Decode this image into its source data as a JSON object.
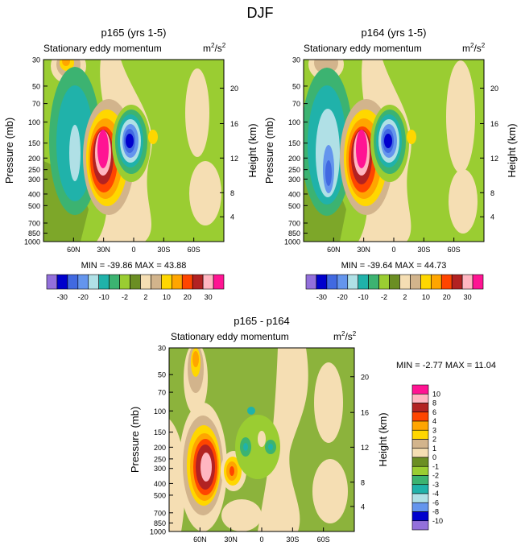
{
  "figure_title": "DJF",
  "chart_data": [
    {
      "type": "contour",
      "title": "p165 (yrs 1-5)",
      "subtitle": "Stationary eddy momentum",
      "units": "m2/s2",
      "units_base": "m",
      "units_sup": "2",
      "units_sep": "/s",
      "units_sup2": "2",
      "ylabel": "Pressure (mb)",
      "y2label": "Height (km)",
      "x_ticks": [
        "60N",
        "30N",
        "0",
        "30S",
        "60S"
      ],
      "x_values": [
        60,
        30,
        0,
        -30,
        -60
      ],
      "xlim": [
        90,
        -90
      ],
      "y_ticks": [
        "30",
        "50",
        "70",
        "100",
        "150",
        "200",
        "250",
        "300",
        "400",
        "500",
        "700",
        "850",
        "1000"
      ],
      "y_values": [
        30,
        50,
        70,
        100,
        150,
        200,
        250,
        300,
        400,
        500,
        700,
        850,
        1000
      ],
      "ylim": [
        30,
        1000
      ],
      "y2_ticks": [
        "20",
        "16",
        "12",
        "8",
        "4"
      ],
      "stats": "MIN = -39.86   MAX =  43.88",
      "min": -39.86,
      "max": 43.88
    },
    {
      "type": "contour",
      "title": "p164 (yrs 1-5)",
      "subtitle": "Stationary eddy momentum",
      "units": "m2/s2",
      "units_base": "m",
      "units_sup": "2",
      "units_sep": "/s",
      "units_sup2": "2",
      "ylabel": "Pressure (mb)",
      "y2label": "Height (km)",
      "x_ticks": [
        "60N",
        "30N",
        "0",
        "30S",
        "60S"
      ],
      "x_values": [
        60,
        30,
        0,
        -30,
        -60
      ],
      "xlim": [
        90,
        -90
      ],
      "y_ticks": [
        "30",
        "50",
        "70",
        "100",
        "150",
        "200",
        "250",
        "300",
        "400",
        "500",
        "700",
        "850",
        "1000"
      ],
      "y_values": [
        30,
        50,
        70,
        100,
        150,
        200,
        250,
        300,
        400,
        500,
        700,
        850,
        1000
      ],
      "ylim": [
        30,
        1000
      ],
      "y2_ticks": [
        "20",
        "16",
        "12",
        "8",
        "4"
      ],
      "stats": "MIN = -39.64   MAX =  44.73",
      "min": -39.64,
      "max": 44.73
    },
    {
      "type": "contour",
      "title": "p165 - p164",
      "subtitle": "Stationary eddy momentum",
      "units": "m2/s2",
      "units_base": "m",
      "units_sup": "2",
      "units_sep": "/s",
      "units_sup2": "2",
      "ylabel": "Pressure (mb)",
      "y2label": "Height (km)",
      "x_ticks": [
        "60N",
        "30N",
        "0",
        "30S",
        "60S"
      ],
      "x_values": [
        60,
        30,
        0,
        -30,
        -60
      ],
      "xlim": [
        90,
        -90
      ],
      "y_ticks": [
        "30",
        "50",
        "70",
        "100",
        "150",
        "200",
        "250",
        "300",
        "400",
        "500",
        "700",
        "850",
        "1000"
      ],
      "y_values": [
        30,
        50,
        70,
        100,
        150,
        200,
        250,
        300,
        400,
        500,
        700,
        850,
        1000
      ],
      "ylim": [
        30,
        1000
      ],
      "y2_ticks": [
        "20",
        "16",
        "12",
        "8",
        "4"
      ],
      "stats": "MIN =  -2.77   MAX =  11.04",
      "min": -2.77,
      "max": 11.04
    }
  ],
  "colorbar_top": {
    "levels": [
      -35,
      -30,
      -25,
      -20,
      -15,
      -10,
      -5,
      -2,
      0,
      2,
      5,
      10,
      15,
      20,
      25,
      30
    ],
    "labels": [
      "-30",
      "-20",
      "-10",
      "-2",
      "2",
      "10",
      "20",
      "30"
    ],
    "colors": [
      "#9370db",
      "#0000cd",
      "#4169e1",
      "#6495ed",
      "#b0e0e6",
      "#20b2aa",
      "#3cb371",
      "#9acd32",
      "#6b8e23",
      "#f5deb3",
      "#d2b48c",
      "#ffd700",
      "#ffa500",
      "#ff4500",
      "#b22222",
      "#ffb6c1",
      "#ff1493"
    ]
  },
  "colorbar_diff": {
    "labels": [
      "10",
      "8",
      "6",
      "4",
      "3",
      "2",
      "1",
      "0",
      "-1",
      "-2",
      "-3",
      "-4",
      "-6",
      "-8",
      "-10"
    ],
    "colors": [
      "#ff1493",
      "#ffb6c1",
      "#b22222",
      "#ff4500",
      "#ffa500",
      "#ffd700",
      "#d2b48c",
      "#f5deb3",
      "#6b8e23",
      "#9acd32",
      "#3cb371",
      "#20b2aa",
      "#b0e0e6",
      "#6495ed",
      "#0000cd",
      "#9370db"
    ]
  }
}
